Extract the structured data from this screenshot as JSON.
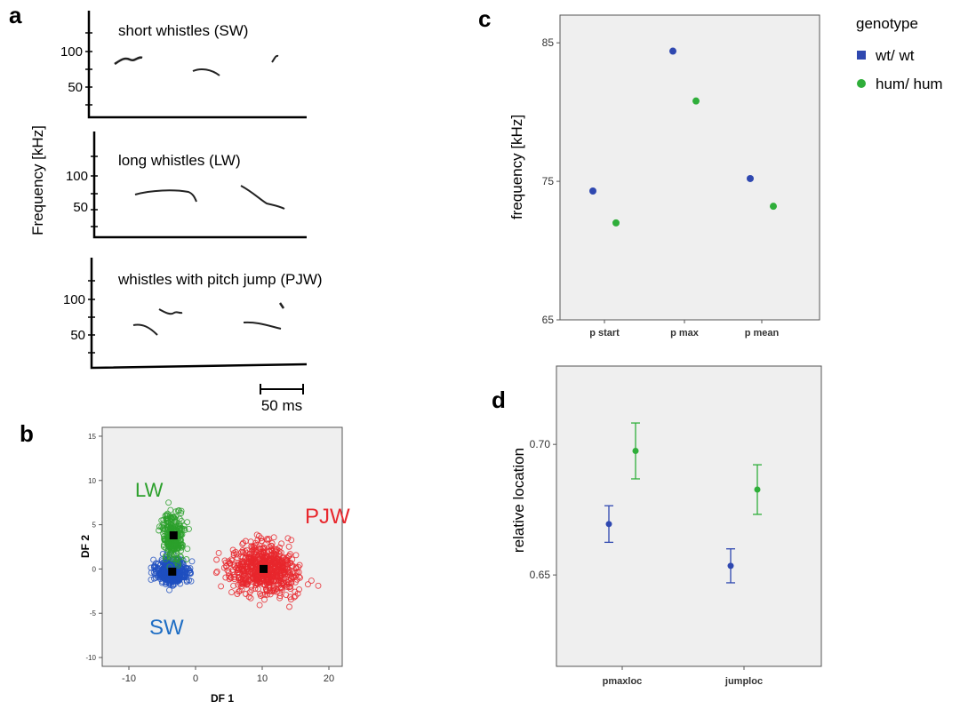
{
  "panel_letters": {
    "a": "a",
    "b": "b",
    "c": "c",
    "d": "d"
  },
  "chart_data": [
    {
      "id": "a",
      "type": "spectrogram",
      "ylabel": "Frequency  [kHz]",
      "y_ticks": [
        50,
        100
      ],
      "scale_bar_label": "50 ms",
      "subplots": [
        {
          "title": "short whistles (SW)"
        },
        {
          "title": "long whistles (LW)"
        },
        {
          "title": "whistles with pitch jump (PJW)"
        }
      ]
    },
    {
      "id": "b",
      "type": "scatter",
      "xlabel": "DF 1",
      "ylabel": "DF 2",
      "xlim": [
        -14,
        22
      ],
      "ylim": [
        -11,
        16
      ],
      "x_ticks": [
        -10,
        0,
        10,
        20
      ],
      "y_ticks": [
        -10,
        -5,
        0,
        5,
        10,
        15
      ],
      "grid": false,
      "clusters": [
        {
          "label": "LW",
          "color": "#2ca02c",
          "centroid": [
            -3.3,
            3.8
          ]
        },
        {
          "label": "SW",
          "color": "#1f4fbf",
          "centroid": [
            -3.5,
            -0.3
          ]
        },
        {
          "label": "PJW",
          "color": "#e8272d",
          "centroid": [
            10.2,
            0.0
          ]
        }
      ]
    },
    {
      "id": "c",
      "type": "scatter",
      "ylabel": "frequency  [kHz]",
      "ylim": [
        65,
        87
      ],
      "y_ticks": [
        65,
        75,
        85
      ],
      "categories": [
        "p start",
        "p max",
        "p mean"
      ],
      "series": [
        {
          "name": "wt/ wt",
          "color": "#2f48b0",
          "values": [
            74.3,
            84.4,
            75.2
          ]
        },
        {
          "name": "hum/ hum",
          "color": "#2fae3a",
          "values": [
            72.0,
            80.8,
            73.2
          ]
        }
      ],
      "legend": {
        "title": "genotype",
        "position": "right"
      }
    },
    {
      "id": "d",
      "type": "errorbar",
      "ylabel": "relative location",
      "ylim": [
        0.615,
        0.73
      ],
      "y_ticks": [
        0.65,
        0.7
      ],
      "y_tick_labels": [
        "0.65",
        "0.70"
      ],
      "categories": [
        "pmaxloc",
        "jumploc"
      ],
      "series": [
        {
          "name": "wt/ wt",
          "color": "#2f48b0",
          "values": [
            0.6695,
            0.6535
          ],
          "err": [
            0.007,
            0.0065
          ]
        },
        {
          "name": "hum/ hum",
          "color": "#2fae3a",
          "values": [
            0.6975,
            0.6827
          ],
          "err": [
            0.0107,
            0.0095
          ]
        }
      ]
    }
  ]
}
